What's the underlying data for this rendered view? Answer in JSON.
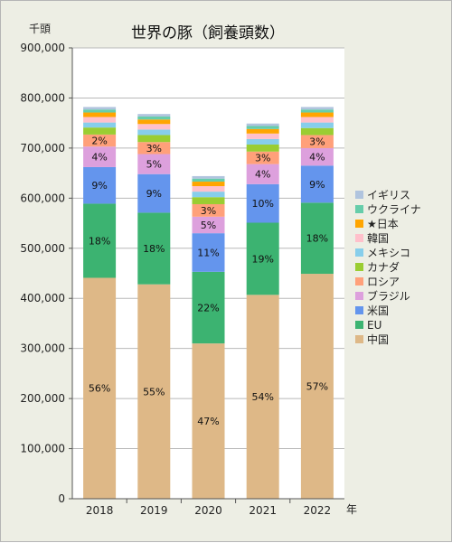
{
  "chart_data": {
    "type": "bar",
    "stacked": true,
    "title": "世界の豚（飼養頭数）",
    "ylabel": "千頭",
    "xlabel": "年",
    "ylim": [
      0,
      900000
    ],
    "yticks": [
      "0",
      "100,000",
      "200,000",
      "300,000",
      "400,000",
      "500,000",
      "600,000",
      "700,000",
      "800,000",
      "900,000"
    ],
    "grid": true,
    "legend": "right",
    "categories": [
      "2018",
      "2019",
      "2020",
      "2021",
      "2022"
    ],
    "series": [
      {
        "name": "中国",
        "color": "#deb887",
        "values": [
          441000,
          428000,
          310000,
          407000,
          449000
        ],
        "labels": [
          "56%",
          "55%",
          "47%",
          "54%",
          "57%"
        ]
      },
      {
        "name": "EU",
        "color": "#3cb371",
        "values": [
          148000,
          143000,
          143000,
          144000,
          142000
        ],
        "labels": [
          "18%",
          "18%",
          "22%",
          "19%",
          "18%"
        ]
      },
      {
        "name": "米国",
        "color": "#6495ed",
        "values": [
          73000,
          77000,
          77000,
          77000,
          74000
        ],
        "labels": [
          "9%",
          "9%",
          "11%",
          "10%",
          "9%"
        ]
      },
      {
        "name": "ブラジル",
        "color": "#dda0dd",
        "values": [
          41000,
          40000,
          33000,
          40000,
          35000
        ],
        "labels": [
          "4%",
          "5%",
          "5%",
          "4%",
          "4%"
        ]
      },
      {
        "name": "ロシア",
        "color": "#ffa07a",
        "values": [
          24000,
          24000,
          25000,
          25000,
          26000
        ],
        "labels": [
          "2%",
          "3%",
          "3%",
          "3%",
          "3%"
        ]
      },
      {
        "name": "カナダ",
        "color": "#9acd32",
        "values": [
          14000,
          14000,
          14000,
          14000,
          14000
        ],
        "labels": [
          "",
          "",
          "",
          "",
          ""
        ]
      },
      {
        "name": "メキシコ",
        "color": "#87ceeb",
        "values": [
          10000,
          11000,
          11000,
          11000,
          11000
        ],
        "labels": [
          "",
          "",
          "",
          "",
          ""
        ]
      },
      {
        "name": "韓国",
        "color": "#ffc0cb",
        "values": [
          11000,
          11000,
          11000,
          11000,
          11000
        ],
        "labels": [
          "",
          "",
          "",
          "",
          ""
        ]
      },
      {
        "name": "★日本",
        "color": "#ffa500",
        "values": [
          9000,
          9000,
          9000,
          9000,
          9000
        ],
        "labels": [
          "",
          "",
          "",
          "",
          ""
        ]
      },
      {
        "name": "ウクライナ",
        "color": "#66cdaa",
        "values": [
          6000,
          6000,
          6000,
          6000,
          6000
        ],
        "labels": [
          "",
          "",
          "",
          "",
          ""
        ]
      },
      {
        "name": "イギリス",
        "color": "#b0c4de",
        "values": [
          5000,
          5000,
          5000,
          5000,
          5000
        ],
        "labels": [
          "",
          "",
          "",
          "",
          ""
        ]
      }
    ]
  }
}
